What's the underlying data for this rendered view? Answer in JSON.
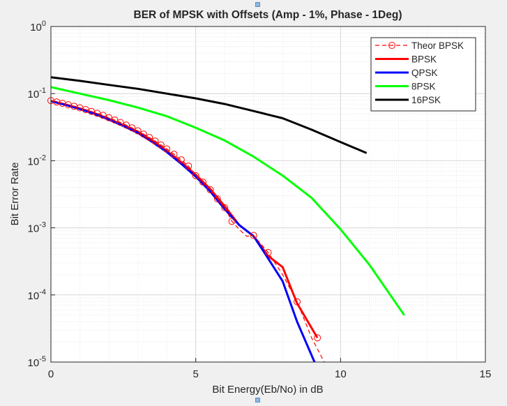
{
  "chart_data": {
    "type": "line",
    "title": "BER of MPSK with Offsets (Amp - 1%, Phase - 1Deg)",
    "xlabel": "Bit Energy(Eb/No) in dB",
    "ylabel": "Bit Error Rate",
    "xlim": [
      0,
      15
    ],
    "ylim": [
      1e-05,
      1
    ],
    "yscale": "log",
    "grid": true,
    "minor_grid": true,
    "legend_position": "top-right",
    "xticks": [
      {
        "value": 0,
        "label": "0"
      },
      {
        "value": 5,
        "label": "5"
      },
      {
        "value": 10,
        "label": "10"
      },
      {
        "value": 15,
        "label": "15"
      }
    ],
    "yticks": [
      {
        "value": 1,
        "base": "10",
        "exp": "0"
      },
      {
        "value": 0.1,
        "base": "10",
        "exp": "-1"
      },
      {
        "value": 0.01,
        "base": "10",
        "exp": "-2"
      },
      {
        "value": 0.001,
        "base": "10",
        "exp": "-3"
      },
      {
        "value": 0.0001,
        "base": "10",
        "exp": "-4"
      },
      {
        "value": 1e-05,
        "base": "10",
        "exp": "-5"
      }
    ],
    "series": [
      {
        "name": "Theor BPSK",
        "color": "#ff0000",
        "style": "dashed",
        "marker": "circle",
        "x": [
          0,
          0.2,
          0.4,
          0.6,
          0.8,
          1.0,
          1.2,
          1.4,
          1.6,
          1.8,
          2.0,
          2.2,
          2.4,
          2.6,
          2.8,
          3.0,
          3.2,
          3.4,
          3.6,
          3.8,
          4.0,
          4.25,
          4.5,
          4.75,
          5.0,
          5.25,
          5.5,
          5.75,
          6.0,
          6.25,
          6.5,
          6.75,
          7.0,
          7.5,
          8.0,
          8.5,
          9.0,
          9.6
        ],
        "y": [
          0.0786,
          0.0751,
          0.0717,
          0.0683,
          0.0648,
          0.0613,
          0.0578,
          0.0543,
          0.0509,
          0.0475,
          0.0438,
          0.0405,
          0.0372,
          0.034,
          0.0309,
          0.0279,
          0.0249,
          0.0222,
          0.0196,
          0.0172,
          0.015,
          0.0125,
          0.0103,
          0.0083,
          0.006,
          0.0048,
          0.0037,
          0.0027,
          0.002,
          0.00125,
          0.00095,
          0.00075,
          0.00077,
          0.00043,
          0.0002,
          7.9e-05,
          2.3e-05,
          7.3e-06
        ],
        "marker_x": [
          0,
          0.2,
          0.4,
          0.6,
          0.8,
          1.0,
          1.2,
          1.4,
          1.6,
          1.8,
          2.0,
          2.2,
          2.4,
          2.6,
          2.8,
          3.0,
          3.2,
          3.4,
          3.6,
          3.8,
          4.0,
          4.25,
          4.5,
          4.75,
          5.0,
          5.25,
          5.5,
          5.75,
          6.0,
          6.25,
          7.0,
          7.5,
          8.5,
          9.2
        ],
        "marker_y": [
          0.0786,
          0.0751,
          0.0717,
          0.0683,
          0.0648,
          0.0613,
          0.0578,
          0.0543,
          0.0509,
          0.0475,
          0.0438,
          0.0405,
          0.0372,
          0.034,
          0.0309,
          0.0279,
          0.0249,
          0.0222,
          0.0196,
          0.0172,
          0.015,
          0.0125,
          0.0103,
          0.0083,
          0.006,
          0.0048,
          0.0037,
          0.0027,
          0.002,
          0.00125,
          0.00077,
          0.00043,
          7.9e-05,
          2.3e-05
        ]
      },
      {
        "name": "BPSK",
        "color": "#ff0000",
        "style": "solid",
        "x": [
          0,
          0.5,
          1,
          1.5,
          2,
          2.5,
          3,
          3.5,
          4,
          4.5,
          5,
          5.5,
          6,
          6.5,
          7,
          7.5,
          8,
          8.5,
          9.2
        ],
        "y": [
          0.078,
          0.069,
          0.06,
          0.051,
          0.042,
          0.034,
          0.027,
          0.02,
          0.014,
          0.0095,
          0.0062,
          0.0038,
          0.0021,
          0.0011,
          0.00075,
          0.00038,
          0.00026,
          7.5e-05,
          2.3e-05
        ]
      },
      {
        "name": "QPSK",
        "color": "#0000ff",
        "style": "solid",
        "x": [
          0,
          0.5,
          1,
          1.5,
          2,
          2.5,
          3,
          3.5,
          4,
          4.5,
          5,
          5.5,
          6,
          6.5,
          7,
          7.5,
          8,
          8.5,
          9.1
        ],
        "y": [
          0.077,
          0.068,
          0.059,
          0.05,
          0.041,
          0.033,
          0.026,
          0.019,
          0.0135,
          0.009,
          0.0058,
          0.0035,
          0.0019,
          0.0011,
          0.00075,
          0.00035,
          0.00016,
          4e-05,
          1e-05
        ]
      },
      {
        "name": "8PSK",
        "color": "#00ff00",
        "style": "solid",
        "x": [
          0,
          1,
          2,
          3,
          4,
          5,
          6,
          7,
          8,
          9,
          10,
          11,
          12.2
        ],
        "y": [
          0.125,
          0.1,
          0.08,
          0.062,
          0.046,
          0.031,
          0.02,
          0.0115,
          0.006,
          0.0028,
          0.00095,
          0.00028,
          5e-05
        ]
      },
      {
        "name": "16PSK",
        "color": "#000000",
        "style": "solid",
        "x": [
          0,
          1,
          2,
          3,
          4,
          5,
          6,
          7,
          8,
          9,
          10,
          10.9
        ],
        "y": [
          0.175,
          0.155,
          0.135,
          0.118,
          0.1,
          0.085,
          0.07,
          0.055,
          0.043,
          0.029,
          0.019,
          0.013
        ]
      }
    ]
  }
}
